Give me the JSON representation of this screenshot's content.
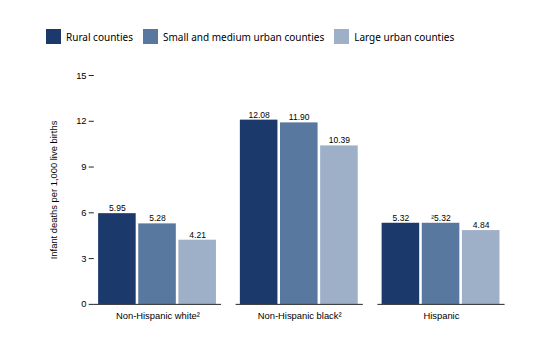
{
  "chart_data": {
    "type": "bar",
    "categories": [
      "Non-Hispanic white²",
      "Non-Hispanic black²",
      "Hispanic"
    ],
    "series": [
      {
        "name": "Rural counties",
        "color": "#1b3a6b",
        "values": [
          5.95,
          12.08,
          5.32
        ],
        "value_labels": [
          "5.95",
          "12.08",
          "5.32"
        ]
      },
      {
        "name": "Small and medium urban counties",
        "color": "#5878a0",
        "values": [
          5.28,
          11.9,
          5.32
        ],
        "value_labels": [
          "5.28",
          "11.90",
          "²5.32"
        ]
      },
      {
        "name": "Large urban counties",
        "color": "#9db0c8",
        "values": [
          4.21,
          10.39,
          4.84
        ],
        "value_labels": [
          "4.21",
          "10.39",
          "4.84"
        ]
      }
    ],
    "ylabel": "Infant deaths per 1,000 live births",
    "ylim": [
      0,
      15
    ],
    "yticks": [
      0,
      3,
      6,
      9,
      12,
      15
    ],
    "grid": false,
    "legend": "upper left",
    "data_labels": true
  }
}
